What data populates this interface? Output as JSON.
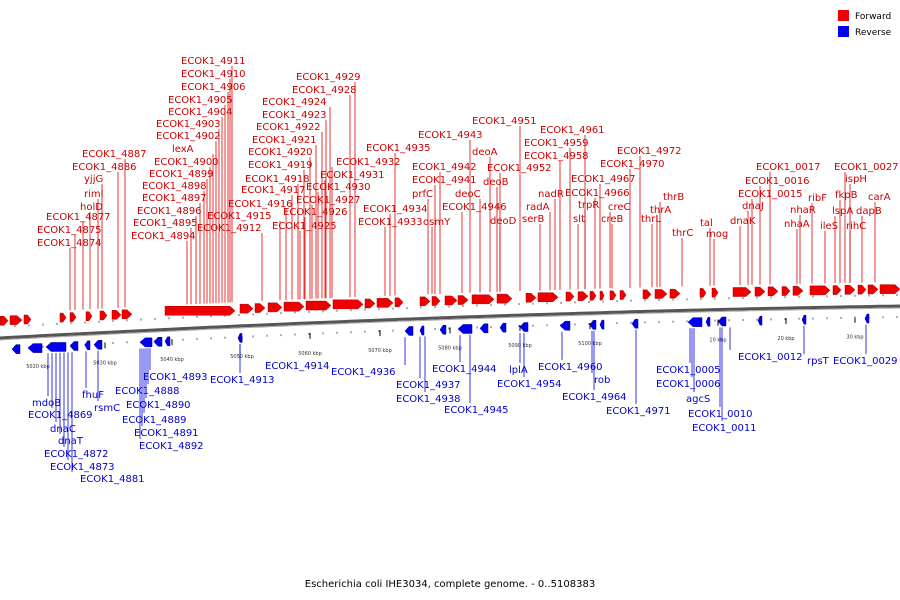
{
  "caption": "Escherichia coli IHE3034, complete genome. - 0..5108383",
  "legend": [
    {
      "label": "Forward",
      "color": "#ee0000"
    },
    {
      "label": "Reverse",
      "color": "#0000ee"
    }
  ],
  "ticks": [
    "5020 kbp",
    "5030 kbp",
    "5040 kbp",
    "5050 kbp",
    "5060 kbp",
    "5070 kbp",
    "5080 kbp",
    "5090 kbp",
    "5100 kbp",
    "10 kbp",
    "20 kbp",
    "30 kbp"
  ],
  "forward_labels": [
    "ECOK1_4911",
    "ECOK1_4910",
    "ECOK1_4906",
    "ECOK1_4905",
    "ECOK1_4904",
    "ECOK1_4903",
    "ECOK1_4902",
    "lexA",
    "ECOK1_4900",
    "ECOK1_4899",
    "ECOK1_4898",
    "ECOK1_4897",
    "ECOK1_4896",
    "ECOK1_4895",
    "ECOK1_4894",
    "ECOK1_4887",
    "ECOK1_4886",
    "yjjG",
    "rimI",
    "holD",
    "ECOK1_4877",
    "ECOK1_4875",
    "ECOK1_4874",
    "ECOK1_4929",
    "ECOK1_4928",
    "ECOK1_4924",
    "ECOK1_4923",
    "ECOK1_4922",
    "ECOK1_4921",
    "ECOK1_4920",
    "ECOK1_4919",
    "ECOK1_4918",
    "ECOK1_4917",
    "ECOK1_4916",
    "ECOK1_4915",
    "ECOK1_4912",
    "ECOK1_4926",
    "ECOK1_4925",
    "ECOK1_4927",
    "ECOK1_4930",
    "ECOK1_4931",
    "ECOK1_4932",
    "ECOK1_4935",
    "ECOK1_4934",
    "ECOK1_4933",
    "ECOK1_4943",
    "ECOK1_4942",
    "ECOK1_4941",
    "prfC",
    "osmY",
    "ECOK1_4946",
    "ECOK1_4951",
    "deoA",
    "ECOK1_4952",
    "deoC",
    "deoB",
    "deoD",
    "ECOK1_4961",
    "ECOK1_4959",
    "ECOK1_4958",
    "nadR",
    "radA",
    "serB",
    "trpR",
    "slt",
    "ECOK1_4967",
    "ECOK1_4966",
    "creC",
    "creB",
    "ECOK1_4972",
    "ECOK1_4970",
    "thrB",
    "thrA",
    "thrL",
    "thrC",
    "tal",
    "mog",
    "dnaK",
    "dnaJ",
    "ECOK1_0015",
    "ECOK1_0016",
    "ECOK1_0017",
    "nhaR",
    "nhaA",
    "ribF",
    "ileS",
    "ECOK1_0027",
    "ispH",
    "fkpB",
    "lspA",
    "dapB",
    "rihC",
    "carA"
  ],
  "reverse_labels": [
    "mdoB",
    "ECOK1_4869",
    "dnaC",
    "dnaT",
    "ECOK1_4872",
    "ECOK1_4873",
    "ECOK1_4881",
    "fhuF",
    "rsmC",
    "ECOK1_4893",
    "ECOK1_4888",
    "ECOK1_4890",
    "ECOK1_4889",
    "ECOK1_4891",
    "ECOK1_4892",
    "ECOK1_4913",
    "ECOK1_4914",
    "ECOK1_4936",
    "ECOK1_4937",
    "ECOK1_4938",
    "ECOK1_4944",
    "ECOK1_4945",
    "lplA",
    "ECOK1_4954",
    "ECOK1_4960",
    "rob",
    "ECOK1_4964",
    "ECOK1_4971",
    "ECOK1_0005",
    "ECOK1_0006",
    "agcS",
    "ECOK1_0010",
    "ECOK1_0011",
    "ECOK1_0012",
    "rpsT",
    "ECOK1_0029"
  ]
}
